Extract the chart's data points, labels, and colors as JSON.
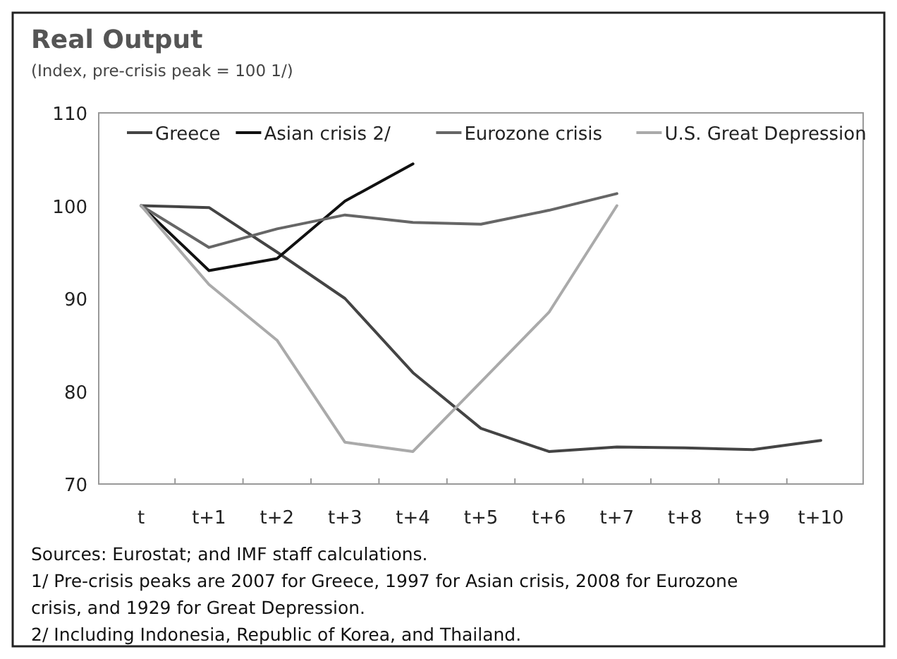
{
  "chart_data": {
    "type": "line",
    "title": "Real Output",
    "subtitle": "(Index, pre-crisis peak = 100 1/)",
    "categories": [
      "t",
      "t+1",
      "t+2",
      "t+3",
      "t+4",
      "t+5",
      "t+6",
      "t+7",
      "t+8",
      "t+9",
      "t+10"
    ],
    "series": [
      {
        "name": "Greece",
        "color": "#444444",
        "values": [
          100,
          99.8,
          95,
          90,
          82,
          76,
          73.5,
          74,
          73.9,
          73.7,
          74.7
        ]
      },
      {
        "name": "Asian crisis 2/",
        "color": "#111111",
        "values": [
          100,
          93,
          94.3,
          100.5,
          104.5,
          null,
          null,
          null,
          null,
          null,
          null
        ]
      },
      {
        "name": "Eurozone crisis",
        "color": "#666666",
        "values": [
          100,
          95.5,
          97.5,
          99,
          98.2,
          98,
          99.5,
          101.3,
          null,
          null,
          null
        ]
      },
      {
        "name": "U.S. Great Depression",
        "color": "#aaaaaa",
        "values": [
          100,
          91.5,
          85.5,
          74.5,
          73.5,
          81,
          88.5,
          100,
          null,
          null,
          null
        ]
      }
    ],
    "ylim": [
      70,
      110
    ],
    "yticks": [
      70,
      80,
      90,
      100,
      110
    ],
    "grid": false,
    "legend": "top",
    "marker": "none",
    "line_style": "solid",
    "annotations": [
      "Sources: Eurostat; and IMF staff calculations.",
      "1/ Pre-crisis peaks are 2007 for Greece, 1997 for Asian crisis, 2008 for Eurozone crisis, and 1929 for Great Depression.",
      "2/ Including Indonesia, Republic of Korea, and Thailand."
    ]
  }
}
